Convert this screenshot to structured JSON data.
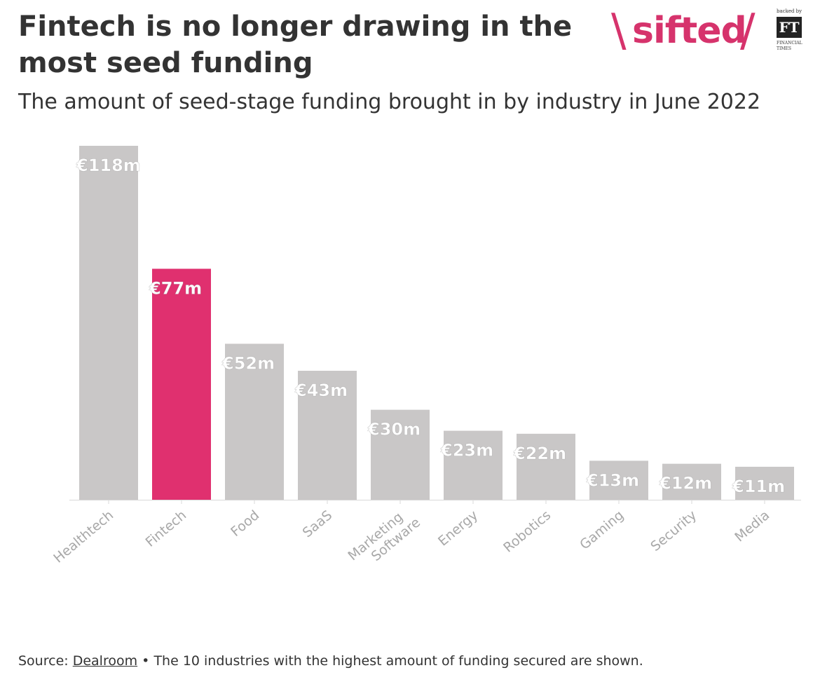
{
  "header": {
    "title": "Fintech is no longer drawing in the most seed funding",
    "subtitle": "The amount of seed-stage funding brought in by industry in June 2022"
  },
  "logo": {
    "left_slash": "\\",
    "wordmark": "sifted",
    "right_slash": "/",
    "backed_by": "backed by",
    "ft": "FT",
    "ft_full_line1": "FINANCIAL",
    "ft_full_line2": "TIMES"
  },
  "footer": {
    "source_label": "Source:",
    "source_name": "Dealroom",
    "separator": "•",
    "note": "The 10 industries with the highest amount of funding secured are shown."
  },
  "colors": {
    "bar": "#c9c7c7",
    "highlight": "#e0306f",
    "brand": "#d6336c",
    "label_on_bar": "#ffffff",
    "label_dark": "#333333",
    "axis_label": "#a8a8a8"
  },
  "chart_data": {
    "type": "bar",
    "categories": [
      "Healthtech",
      "Fintech",
      "Food",
      "SaaS",
      "Marketing Software",
      "Energy",
      "Robotics",
      "Gaming",
      "Security",
      "Media"
    ],
    "values": [
      118,
      77,
      52,
      43,
      30,
      23,
      22,
      13,
      12,
      11
    ],
    "data_labels": [
      "€118m",
      "€77m",
      "€52m",
      "€43m",
      "€30m",
      "€23m",
      "€22m",
      "€13m",
      "€12m",
      "€11m"
    ],
    "highlight_category": "Fintech",
    "unit": "€m",
    "ylim": [
      0,
      118
    ],
    "grid": false,
    "legend": "none"
  }
}
